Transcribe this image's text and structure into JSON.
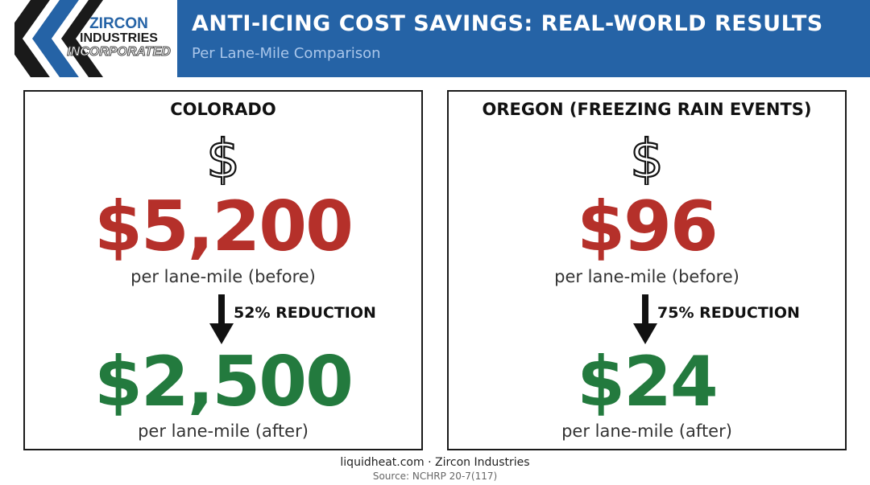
{
  "header": {
    "logo": {
      "line1": "ZIRCON",
      "line2": "INDUSTRIES",
      "line3": "INCORPORATED"
    },
    "title": "ANTI-ICING COST SAVINGS: REAL-WORLD RESULTS",
    "subtitle": "Per Lane-Mile Comparison"
  },
  "panels": [
    {
      "region": "COLORADO",
      "icon": "dollar-sign-icon",
      "before_value": "$5,200",
      "before_caption": "per lane-mile (before)",
      "reduction": "52% REDUCTION",
      "after_value": "$2,500",
      "after_caption": "per lane-mile (after)"
    },
    {
      "region": "OREGON (FREEZING RAIN EVENTS)",
      "icon": "dollar-sign-icon",
      "before_value": "$96",
      "before_caption": "per lane-mile (before)",
      "reduction": "75% REDUCTION",
      "after_value": "$24",
      "after_caption": "per lane-mile (after)"
    }
  ],
  "footer": {
    "credit": "liquidheat.com · Zircon Industries",
    "source": "Source: NCHRP 20-7(117)"
  },
  "colors": {
    "brand_blue": "#2563a6",
    "before_red": "#b5302a",
    "after_green": "#237a3e"
  }
}
